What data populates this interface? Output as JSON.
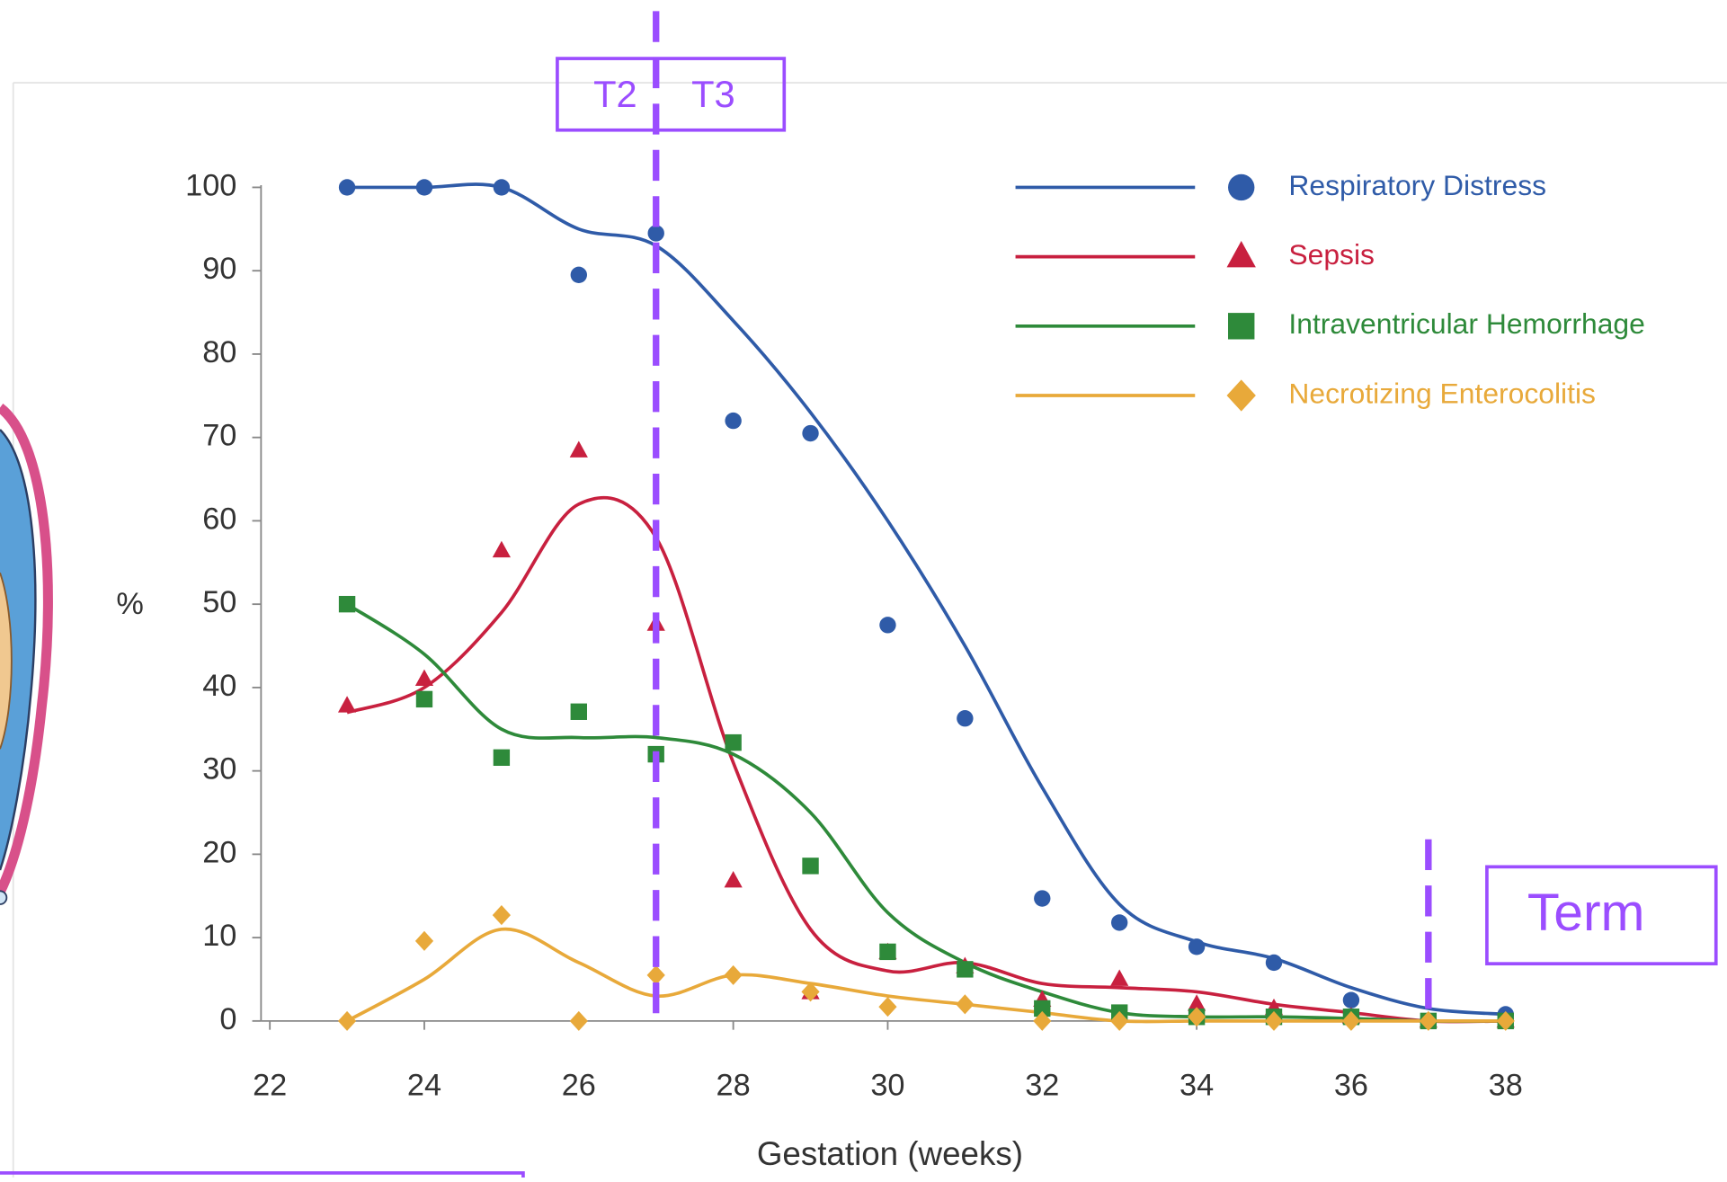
{
  "chart_data": {
    "type": "scatter",
    "x_label": "Gestation (weeks)",
    "y_label": "%",
    "xlim": [
      22,
      38
    ],
    "ylim": [
      0,
      100
    ],
    "xticks": [
      22,
      24,
      26,
      28,
      30,
      32,
      34,
      36,
      38
    ],
    "yticks": [
      0,
      10,
      20,
      30,
      40,
      50,
      60,
      70,
      80,
      90,
      100
    ],
    "x": [
      23,
      24,
      25,
      26,
      27,
      28,
      29,
      30,
      31,
      32,
      33,
      34,
      35,
      36,
      37,
      38
    ],
    "series": [
      {
        "name": "Respiratory Distress",
        "color": "#2f5ba8",
        "marker": "circle",
        "values": [
          100,
          100,
          100,
          89.5,
          94.5,
          72,
          70.5,
          47.5,
          36.3,
          14.7,
          11.8,
          8.9,
          7,
          2.5,
          0,
          0.8
        ],
        "trend": [
          100,
          100,
          100,
          95,
          93,
          84,
          73,
          60,
          45,
          28,
          14,
          9.5,
          7.5,
          4,
          1.5,
          0.8
        ]
      },
      {
        "name": "Sepsis",
        "color": "#c8203f",
        "marker": "triangle",
        "values": [
          37.8,
          41,
          56.4,
          68.4,
          47.6,
          16.8,
          3.4,
          8.2,
          6.5,
          2.5,
          5,
          2,
          1.5,
          0.5,
          0,
          0
        ],
        "trend": [
          37,
          40,
          49,
          62,
          58,
          31,
          11,
          6,
          7,
          4.5,
          4,
          3.5,
          2,
          1,
          0,
          0
        ]
      },
      {
        "name": "Intraventricular Hemorrhage",
        "color": "#2e8a3a",
        "marker": "square",
        "values": [
          50,
          38.6,
          31.6,
          37.1,
          32,
          33.4,
          18.6,
          8.3,
          6.2,
          1.5,
          1,
          0.5,
          0.5,
          0.5,
          0,
          0
        ],
        "trend": [
          50,
          44,
          35,
          34,
          34,
          32,
          25,
          13,
          7,
          3.5,
          1,
          0.5,
          0.5,
          0.3,
          0,
          0
        ]
      },
      {
        "name": "Necrotizing Enterocolitis",
        "color": "#e8a93a",
        "marker": "diamond",
        "values": [
          0,
          9.6,
          12.7,
          0,
          5.5,
          5.5,
          3.5,
          1.7,
          2,
          0,
          0,
          0.5,
          0,
          0,
          0,
          0
        ],
        "trend": [
          0,
          5,
          11,
          7,
          3,
          5.5,
          4.5,
          3,
          2,
          1,
          0,
          0,
          0,
          0,
          0,
          0
        ]
      }
    ],
    "annotations": [
      {
        "x": 27,
        "labels": [
          "T2",
          "T3"
        ]
      },
      {
        "x": 37,
        "labels": [
          "Term"
        ]
      }
    ],
    "annotation_color": "#9b4dff"
  }
}
